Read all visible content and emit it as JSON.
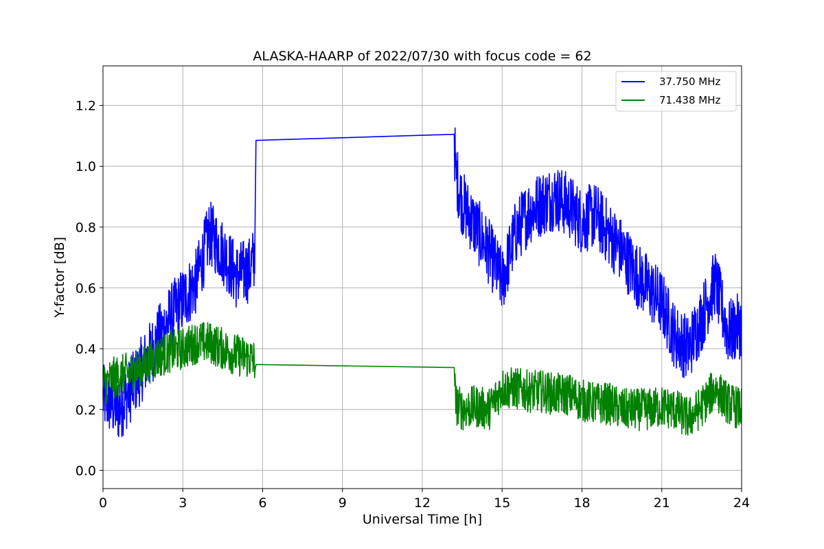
{
  "chart_data": {
    "type": "line",
    "title": "ALASKA-HAARP of 2022/07/30 with focus code = 62",
    "xlabel": "Universal Time [h]",
    "ylabel": "Y-factor [dB]",
    "xlim": [
      0,
      24
    ],
    "ylim": [
      -0.06,
      1.33
    ],
    "xticks": [
      0,
      3,
      6,
      9,
      12,
      15,
      18,
      21,
      24
    ],
    "yticks": [
      0.0,
      0.2,
      0.4,
      0.6,
      0.8,
      1.0,
      1.2
    ],
    "xtick_labels": [
      "0",
      "3",
      "6",
      "9",
      "12",
      "15",
      "18",
      "21",
      "24"
    ],
    "ytick_labels": [
      "0.0",
      "0.2",
      "0.4",
      "0.6",
      "0.8",
      "1.0",
      "1.2"
    ],
    "grid": true,
    "legend_position": "top-right",
    "series": [
      {
        "name": "37.750 MHz",
        "color": "#0000ff",
        "x": [
          0.0,
          0.3,
          0.6,
          1.0,
          1.5,
          2.0,
          2.5,
          3.0,
          3.5,
          4.0,
          4.5,
          5.0,
          5.5,
          5.7,
          5.75,
          13.2,
          13.25,
          13.5,
          14.0,
          14.5,
          15.0,
          15.5,
          16.0,
          16.5,
          17.0,
          17.5,
          18.0,
          18.5,
          19.0,
          19.5,
          20.0,
          20.5,
          21.0,
          21.5,
          22.0,
          22.5,
          23.0,
          23.5,
          24.0
        ],
        "values": [
          0.24,
          0.22,
          0.2,
          0.26,
          0.34,
          0.42,
          0.5,
          0.56,
          0.62,
          0.78,
          0.72,
          0.64,
          0.66,
          0.7,
          1.085,
          1.105,
          0.98,
          0.88,
          0.8,
          0.72,
          0.62,
          0.78,
          0.85,
          0.88,
          0.9,
          0.87,
          0.82,
          0.84,
          0.78,
          0.72,
          0.65,
          0.6,
          0.55,
          0.44,
          0.4,
          0.5,
          0.62,
          0.45,
          0.48
        ]
      },
      {
        "name": "71.438 MHz",
        "color": "#008000",
        "x": [
          0.0,
          0.3,
          0.6,
          1.0,
          1.5,
          2.0,
          2.5,
          3.0,
          3.5,
          4.0,
          4.5,
          5.0,
          5.5,
          5.7,
          5.75,
          13.2,
          13.25,
          13.5,
          14.0,
          14.5,
          15.0,
          15.5,
          16.0,
          16.5,
          17.0,
          17.5,
          18.0,
          18.5,
          19.0,
          19.5,
          20.0,
          20.5,
          21.0,
          21.5,
          22.0,
          22.5,
          23.0,
          23.5,
          24.0
        ],
        "values": [
          0.28,
          0.3,
          0.31,
          0.32,
          0.34,
          0.37,
          0.39,
          0.4,
          0.42,
          0.42,
          0.4,
          0.38,
          0.37,
          0.36,
          0.348,
          0.338,
          0.22,
          0.2,
          0.21,
          0.2,
          0.27,
          0.27,
          0.26,
          0.26,
          0.25,
          0.25,
          0.23,
          0.22,
          0.22,
          0.2,
          0.2,
          0.2,
          0.21,
          0.2,
          0.17,
          0.21,
          0.27,
          0.22,
          0.2
        ]
      }
    ]
  }
}
